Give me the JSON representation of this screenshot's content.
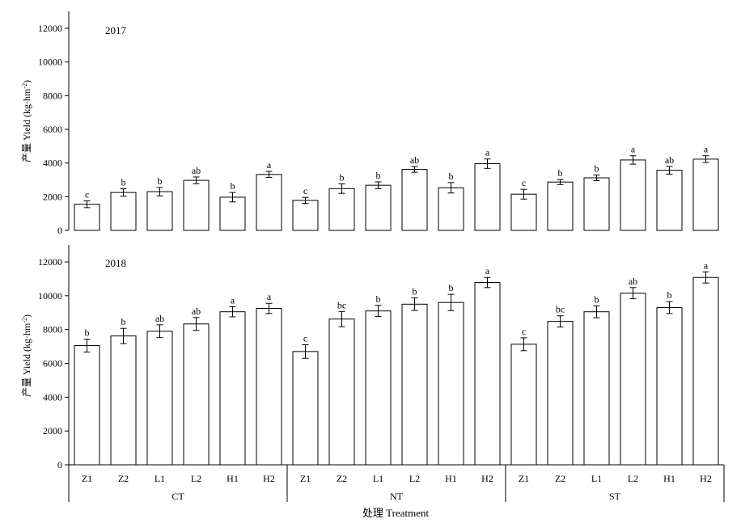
{
  "chart_data": [
    {
      "type": "bar",
      "panel_label": "2017",
      "ylabel": "产量 Yield (kg·hm",
      "ylabel_sup": "-2",
      "ylabel_close": ")",
      "ylim": [
        0,
        13000
      ],
      "yticks": [
        0,
        2000,
        4000,
        6000,
        8000,
        10000,
        12000
      ],
      "ytick_labels": [
        "0",
        "2000",
        "4000",
        "6000",
        "8000",
        "10000",
        "12000"
      ],
      "groups": [
        "CT",
        "NT",
        "ST"
      ],
      "categories": [
        "Z1",
        "Z2",
        "L1",
        "L2",
        "H1",
        "H2",
        "Z1",
        "Z2",
        "L1",
        "L2",
        "H1",
        "H2",
        "Z1",
        "Z2",
        "L1",
        "L2",
        "H1",
        "H2"
      ],
      "values": [
        1550,
        2250,
        2300,
        2970,
        1970,
        3320,
        1780,
        2480,
        2680,
        3620,
        2530,
        3960,
        2150,
        2870,
        3120,
        4180,
        3570,
        4230
      ],
      "errors": [
        200,
        220,
        250,
        200,
        280,
        180,
        180,
        280,
        200,
        170,
        310,
        280,
        290,
        150,
        170,
        250,
        230,
        200
      ],
      "letters": [
        "c",
        "b",
        "b",
        "ab",
        "b",
        "a",
        "c",
        "b",
        "b",
        "ab",
        "b",
        "a",
        "c",
        "b",
        "b",
        "a",
        "ab",
        "a"
      ]
    },
    {
      "type": "bar",
      "panel_label": "2018",
      "ylabel": "产量 Yield (kg·hm",
      "ylabel_sup": "-2",
      "ylabel_close": ")",
      "ylim": [
        0,
        13000
      ],
      "yticks": [
        0,
        2000,
        4000,
        6000,
        8000,
        10000,
        12000
      ],
      "ytick_labels": [
        "0",
        "2000",
        "4000",
        "6000",
        "8000",
        "10000",
        "12000"
      ],
      "groups": [
        "CT",
        "NT",
        "ST"
      ],
      "categories": [
        "Z1",
        "Z2",
        "L1",
        "L2",
        "H1",
        "H2",
        "Z1",
        "Z2",
        "L1",
        "L2",
        "H1",
        "H2",
        "Z1",
        "Z2",
        "L1",
        "L2",
        "H1",
        "H2"
      ],
      "values": [
        7050,
        7620,
        7900,
        8330,
        9050,
        9250,
        6700,
        8620,
        9100,
        9500,
        9600,
        10780,
        7130,
        8480,
        9050,
        10150,
        9300,
        11080
      ],
      "errors": [
        380,
        450,
        380,
        380,
        300,
        300,
        400,
        450,
        330,
        370,
        480,
        300,
        380,
        330,
        350,
        330,
        350,
        330
      ],
      "letters": [
        "b",
        "b",
        "ab",
        "ab",
        "a",
        "a",
        "c",
        "bc",
        "b",
        "b",
        "b",
        "a",
        "c",
        "bc",
        "b",
        "ab",
        "b",
        "a"
      ]
    }
  ],
  "xlabel": "处理 Treatment"
}
